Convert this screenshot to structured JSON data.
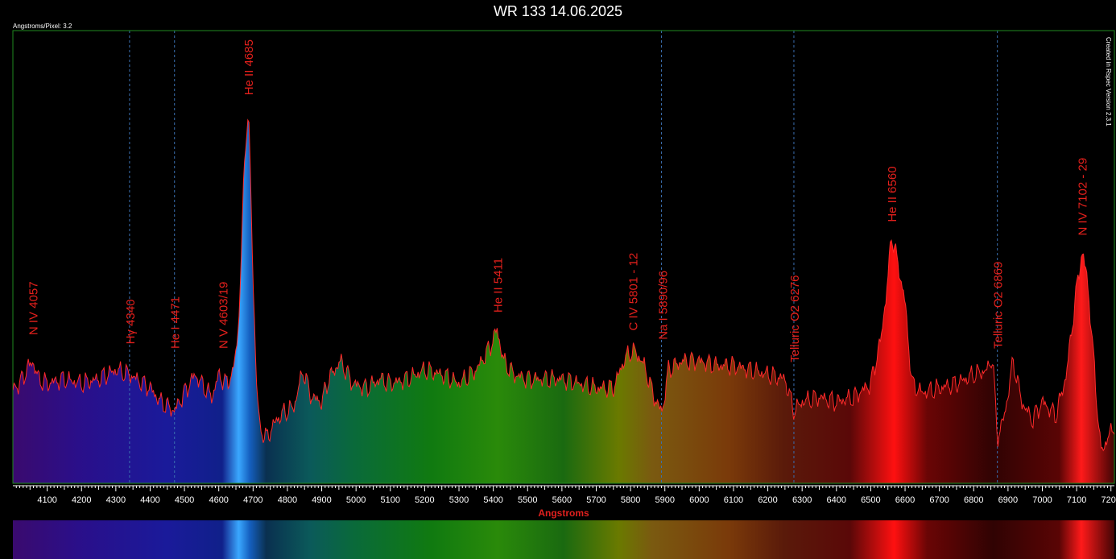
{
  "chart_data": {
    "type": "line",
    "title": "WR 133 14.06.2025",
    "xlabel": "Angstroms",
    "ylabel": "",
    "xlim": [
      4000,
      7210
    ],
    "ylim": [
      0,
      1
    ],
    "grid": false,
    "info_text": "Angstroms/Pixel: 3.2",
    "credit_text": "Created in Rspec Version 2.3.1",
    "colors": {
      "line": "#ff2a2a",
      "label": "#e4201c",
      "marker": "#3a6fb0",
      "frame": "#1f8a1f"
    },
    "xticks": [
      4100,
      4200,
      4300,
      4400,
      4500,
      4600,
      4700,
      4800,
      4900,
      5000,
      5100,
      5200,
      5300,
      5400,
      5500,
      5600,
      5700,
      5800,
      5900,
      6000,
      6100,
      6200,
      6300,
      6400,
      6500,
      6600,
      6700,
      6800,
      6900,
      7000,
      7100,
      7200
    ],
    "reference_lines": [
      4340,
      4471,
      5890,
      6276,
      6869
    ],
    "annotations": [
      {
        "text": "N IV 4057",
        "x": 4057,
        "y": 0.32
      },
      {
        "text": "Hγ 4340",
        "x": 4340,
        "y": 0.3
      },
      {
        "text": "He I 4471",
        "x": 4471,
        "y": 0.29
      },
      {
        "text": "N V 4603/19",
        "x": 4611,
        "y": 0.29
      },
      {
        "text": "He II 4685",
        "x": 4685,
        "y": 0.85
      },
      {
        "text": "He II 5411",
        "x": 5411,
        "y": 0.37
      },
      {
        "text": "C IV 5801 - 12",
        "x": 5806,
        "y": 0.33
      },
      {
        "text": "Na I 5890/96",
        "x": 5893,
        "y": 0.31
      },
      {
        "text": "Telluric O2 6276",
        "x": 6276,
        "y": 0.26
      },
      {
        "text": "He II 6560",
        "x": 6560,
        "y": 0.57
      },
      {
        "text": "Telluric O2 6869",
        "x": 6869,
        "y": 0.29
      },
      {
        "text": "N IV 7102 - 29",
        "x": 7115,
        "y": 0.54
      }
    ],
    "series": [
      {
        "x": [
          4000,
          4020,
          4040,
          4057,
          4075,
          4100,
          4150,
          4200,
          4250,
          4300,
          4340,
          4360,
          4400,
          4430,
          4450,
          4471,
          4500,
          4530,
          4560,
          4580,
          4600,
          4620,
          4640,
          4655,
          4665,
          4675,
          4682,
          4686,
          4690,
          4700,
          4710,
          4720,
          4740,
          4760,
          4780,
          4800,
          4820,
          4845,
          4870,
          4900,
          4920,
          4955,
          4990,
          5030,
          5070,
          5100,
          5150,
          5200,
          5250,
          5300,
          5350,
          5390,
          5411,
          5430,
          5460,
          5500,
          5550,
          5600,
          5650,
          5700,
          5750,
          5780,
          5800,
          5815,
          5840,
          5860,
          5880,
          5893,
          5910,
          5950,
          6000,
          6050,
          6100,
          6150,
          6200,
          6250,
          6276,
          6300,
          6350,
          6400,
          6450,
          6500,
          6530,
          6550,
          6560,
          6575,
          6600,
          6620,
          6650,
          6700,
          6750,
          6800,
          6840,
          6855,
          6869,
          6890,
          6915,
          6940,
          6970,
          7000,
          7040,
          7070,
          7100,
          7115,
          7130,
          7150,
          7170,
          7185,
          7210
        ],
        "y": [
          0.21,
          0.22,
          0.25,
          0.27,
          0.23,
          0.22,
          0.23,
          0.22,
          0.23,
          0.25,
          0.24,
          0.23,
          0.21,
          0.18,
          0.17,
          0.16,
          0.2,
          0.24,
          0.21,
          0.19,
          0.24,
          0.22,
          0.24,
          0.32,
          0.48,
          0.72,
          0.79,
          0.81,
          0.74,
          0.45,
          0.22,
          0.12,
          0.1,
          0.13,
          0.15,
          0.16,
          0.17,
          0.25,
          0.19,
          0.18,
          0.23,
          0.27,
          0.22,
          0.21,
          0.23,
          0.22,
          0.23,
          0.25,
          0.24,
          0.22,
          0.25,
          0.3,
          0.34,
          0.27,
          0.24,
          0.23,
          0.23,
          0.23,
          0.22,
          0.21,
          0.21,
          0.27,
          0.29,
          0.29,
          0.26,
          0.21,
          0.17,
          0.16,
          0.25,
          0.27,
          0.27,
          0.26,
          0.26,
          0.25,
          0.24,
          0.23,
          0.16,
          0.18,
          0.19,
          0.18,
          0.19,
          0.22,
          0.32,
          0.45,
          0.55,
          0.5,
          0.4,
          0.22,
          0.2,
          0.21,
          0.22,
          0.24,
          0.25,
          0.28,
          0.1,
          0.15,
          0.27,
          0.18,
          0.14,
          0.18,
          0.15,
          0.24,
          0.43,
          0.51,
          0.46,
          0.27,
          0.07,
          0.09,
          0.13
        ]
      }
    ]
  }
}
